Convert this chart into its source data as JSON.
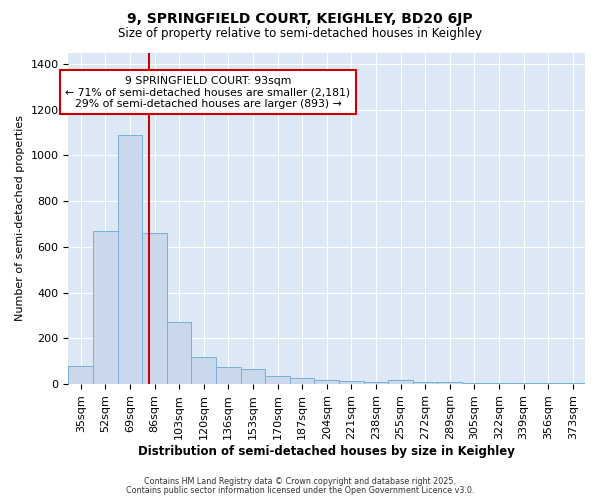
{
  "title": "9, SPRINGFIELD COURT, KEIGHLEY, BD20 6JP",
  "subtitle": "Size of property relative to semi-detached houses in Keighley",
  "xlabel": "Distribution of semi-detached houses by size in Keighley",
  "ylabel": "Number of semi-detached properties",
  "categories": [
    "35sqm",
    "52sqm",
    "69sqm",
    "86sqm",
    "103sqm",
    "120sqm",
    "136sqm",
    "153sqm",
    "170sqm",
    "187sqm",
    "204sqm",
    "221sqm",
    "238sqm",
    "255sqm",
    "272sqm",
    "289sqm",
    "305sqm",
    "322sqm",
    "339sqm",
    "356sqm",
    "373sqm"
  ],
  "values": [
    80,
    670,
    1090,
    660,
    270,
    120,
    75,
    65,
    35,
    25,
    20,
    15,
    10,
    20,
    10,
    10,
    5,
    5,
    5,
    5,
    5
  ],
  "bar_color": "#c9d9eb",
  "bar_edge_color": "#7aafd4",
  "bar_width": 1.0,
  "red_line_x": 2.78,
  "annotation_line1": "9 SPRINGFIELD COURT: 93sqm",
  "annotation_line2": "← 71% of semi-detached houses are smaller (2,181)",
  "annotation_line3": "29% of semi-detached houses are larger (893) →",
  "annotation_box_color": "#ffffff",
  "annotation_box_edge": "#cc0000",
  "red_line_color": "#cc0000",
  "ylim": [
    0,
    1450
  ],
  "background_color": "#dce8f5",
  "grid_color": "#ffffff",
  "fig_background": "#ffffff",
  "footer1": "Contains HM Land Registry data © Crown copyright and database right 2025.",
  "footer2": "Contains public sector information licensed under the Open Government Licence v3.0.",
  "yticks": [
    0,
    200,
    400,
    600,
    800,
    1000,
    1200,
    1400
  ]
}
